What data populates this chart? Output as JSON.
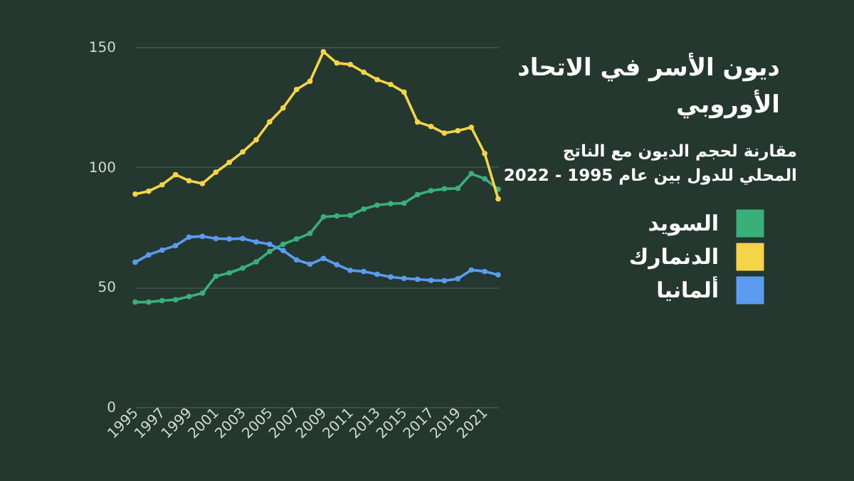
{
  "chart_data": {
    "type": "line",
    "title": "ديون الأسر في الاتحاد الأوروبي",
    "subtitle": "مقارنة لحجم الديون مع الناتج المحلي للدول بين عام 1995 - 2022",
    "x": [
      1995,
      1996,
      1997,
      1998,
      1999,
      2000,
      2001,
      2002,
      2003,
      2004,
      2005,
      2006,
      2007,
      2008,
      2009,
      2010,
      2011,
      2012,
      2013,
      2014,
      2015,
      2016,
      2017,
      2018,
      2019,
      2020,
      2021,
      2022
    ],
    "series": [
      {
        "name": "السويد",
        "color": "#3aaf7a",
        "values": [
          43.7,
          43.7,
          44.3,
          44.7,
          46,
          47.4,
          54.5,
          55.9,
          57.9,
          60.5,
          64.8,
          67.8,
          70,
          72.3,
          79.2,
          79.6,
          79.8,
          82.5,
          84.1,
          84.7,
          84.9,
          88.5,
          90.1,
          90.9,
          91.1,
          97.2,
          95.1,
          90.7
        ]
      },
      {
        "name": "الدنمارك",
        "color": "#f5d547",
        "values": [
          88.7,
          89.9,
          92.6,
          96.8,
          94.3,
          93.1,
          97.8,
          101.9,
          106.3,
          111.3,
          118.8,
          124.6,
          132.3,
          135.7,
          148,
          143.3,
          142.7,
          139.5,
          136.4,
          134.4,
          131.2,
          118.7,
          116.9,
          114.1,
          115.1,
          116.5,
          105.6,
          86.7
        ]
      },
      {
        "name": "ألمانيا",
        "color": "#5b9cf0",
        "values": [
          60.3,
          63.4,
          65.4,
          67.2,
          70.8,
          71.1,
          70.2,
          70,
          70.2,
          68.8,
          67.8,
          65.2,
          61.3,
          59.5,
          61.9,
          59.3,
          56.9,
          56.5,
          55.3,
          54.2,
          53.6,
          53.2,
          52.8,
          52.6,
          53.4,
          57.1,
          56.5,
          55.1
        ]
      }
    ],
    "xlim": [
      1995,
      2022
    ],
    "xticks": [
      1995,
      1997,
      1999,
      2001,
      2003,
      2005,
      2007,
      2009,
      2011,
      2013,
      2015,
      2017,
      2019,
      2021
    ],
    "ylim": [
      0,
      150
    ],
    "yticks": [
      0,
      50,
      100,
      150
    ],
    "grid": "y",
    "legend": "right",
    "marker": "circle",
    "line_style": "solid"
  }
}
